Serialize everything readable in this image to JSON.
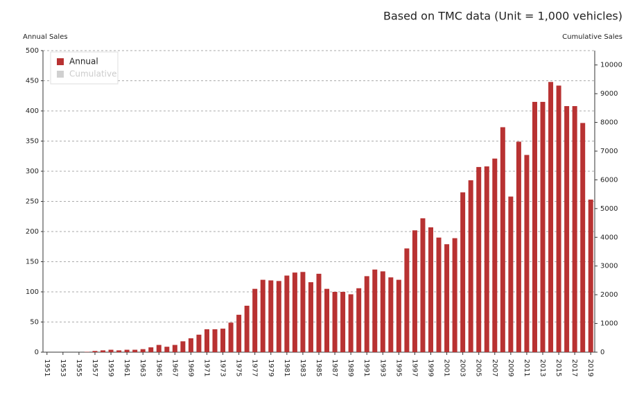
{
  "chart_data": {
    "type": "bar",
    "title": "Based on TMC data (Unit = 1,000 vehicles)",
    "y_label": "Annual Sales",
    "y2_label": "Cumulative Sales",
    "categories": [
      "1951",
      null,
      "1953",
      null,
      "1955",
      null,
      "1957",
      null,
      "1959",
      null,
      "1961",
      null,
      "1963",
      null,
      "1965",
      null,
      "1967",
      null,
      "1969",
      null,
      "1971",
      null,
      "1973",
      null,
      "1975",
      null,
      "1977",
      null,
      "1979",
      null,
      "1981",
      null,
      "1983",
      null,
      "1985",
      null,
      "1987",
      null,
      "1989",
      null,
      "1991",
      null,
      "1993",
      null,
      "1995",
      null,
      "1997",
      null,
      "1999",
      null,
      "2001",
      null,
      "2003",
      null,
      "2005",
      null,
      "2007",
      null,
      "2009",
      null,
      "2011",
      null,
      "2013",
      null,
      "2015",
      null,
      "2017",
      null,
      "2019"
    ],
    "series": [
      {
        "name": "Annual",
        "color": "#b83232",
        "values": [
          0,
          0,
          0,
          0,
          0,
          0.5,
          2,
          3,
          4,
          3,
          4,
          4,
          5,
          8,
          12,
          9,
          12,
          18,
          23,
          29,
          38,
          38,
          39,
          49,
          62,
          77,
          105,
          120,
          119,
          118,
          127,
          132,
          133,
          116,
          130,
          105,
          100,
          100,
          96,
          106,
          126,
          137,
          134,
          124,
          120,
          172,
          202,
          222,
          207,
          190,
          179,
          189,
          265,
          285,
          307,
          308,
          321,
          373,
          258,
          349,
          327,
          415,
          415,
          448,
          442,
          408,
          408,
          380,
          253
        ]
      }
    ],
    "legend_only": [
      {
        "name": "Cumulative",
        "color": "#d0d0d0",
        "axis": "y2",
        "hidden": true
      }
    ],
    "ylim": [
      0,
      500
    ],
    "yticks": [
      0,
      50,
      100,
      150,
      200,
      250,
      300,
      350,
      400,
      450,
      500
    ],
    "y2lim": [
      0,
      10500
    ],
    "y2ticks": [
      0,
      1000,
      2000,
      3000,
      4000,
      5000,
      6000,
      7000,
      8000,
      9000,
      10000
    ],
    "grid": true
  }
}
